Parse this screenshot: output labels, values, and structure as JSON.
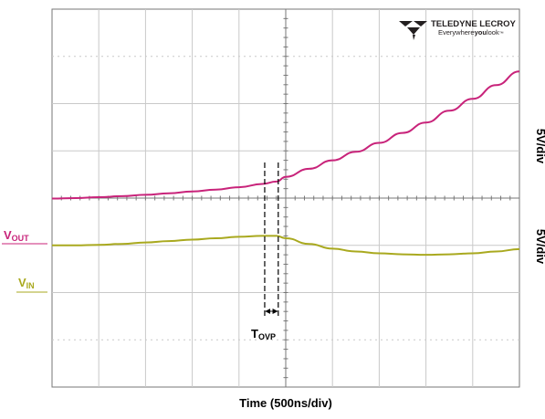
{
  "brand": {
    "name": "TELEDYNE LECROY",
    "tagline_prefix": "Everywhere",
    "tagline_bold": "you",
    "tagline_suffix": "look",
    "trademark": "™",
    "color": "#231f20"
  },
  "chart_data": {
    "type": "line",
    "x_axis": {
      "label": "Time (500ns/div)",
      "divisions": 10
    },
    "y_axis": {
      "divisions": 8
    },
    "grid": true,
    "channels": [
      {
        "name": "V_OUT",
        "label_main": "V",
        "label_sub": "OUT",
        "scale": "5V/div",
        "color": "#c8237a"
      },
      {
        "name": "V_IN",
        "label_main": "V",
        "label_sub": "IN",
        "scale": "5V/div",
        "color": "#a9a91f"
      }
    ],
    "series": [
      {
        "name": "V_OUT",
        "color": "#c8237a",
        "x_div": [
          0,
          0.5,
          1,
          1.5,
          2,
          2.5,
          3,
          3.5,
          4,
          4.5,
          4.8,
          5,
          5.5,
          6,
          6.5,
          7,
          7.5,
          8,
          8.5,
          9,
          9.5,
          10
        ],
        "y_div": [
          -0.01,
          0.0,
          0.02,
          0.04,
          0.07,
          0.1,
          0.14,
          0.18,
          0.23,
          0.3,
          0.35,
          0.45,
          0.62,
          0.8,
          0.98,
          1.17,
          1.38,
          1.6,
          1.85,
          2.1,
          2.39,
          2.68
        ]
      },
      {
        "name": "V_IN",
        "color": "#a9a91f",
        "x_div": [
          0,
          0.5,
          1,
          1.5,
          2,
          2.5,
          3,
          3.5,
          4,
          4.5,
          4.8,
          5,
          5.5,
          6,
          6.5,
          7,
          7.5,
          8,
          8.5,
          9,
          9.5,
          10
        ],
        "y_div": [
          -1.0,
          -1.0,
          -0.99,
          -0.97,
          -0.94,
          -0.91,
          -0.88,
          -0.85,
          -0.82,
          -0.8,
          -0.8,
          -0.85,
          -0.97,
          -1.07,
          -1.13,
          -1.17,
          -1.19,
          -1.2,
          -1.19,
          -1.17,
          -1.13,
          -1.08
        ]
      }
    ],
    "annotations": {
      "tovp": {
        "label_main": "T",
        "label_sub": "OVP",
        "x_start_div": 4.55,
        "x_end_div": 4.84
      }
    }
  }
}
